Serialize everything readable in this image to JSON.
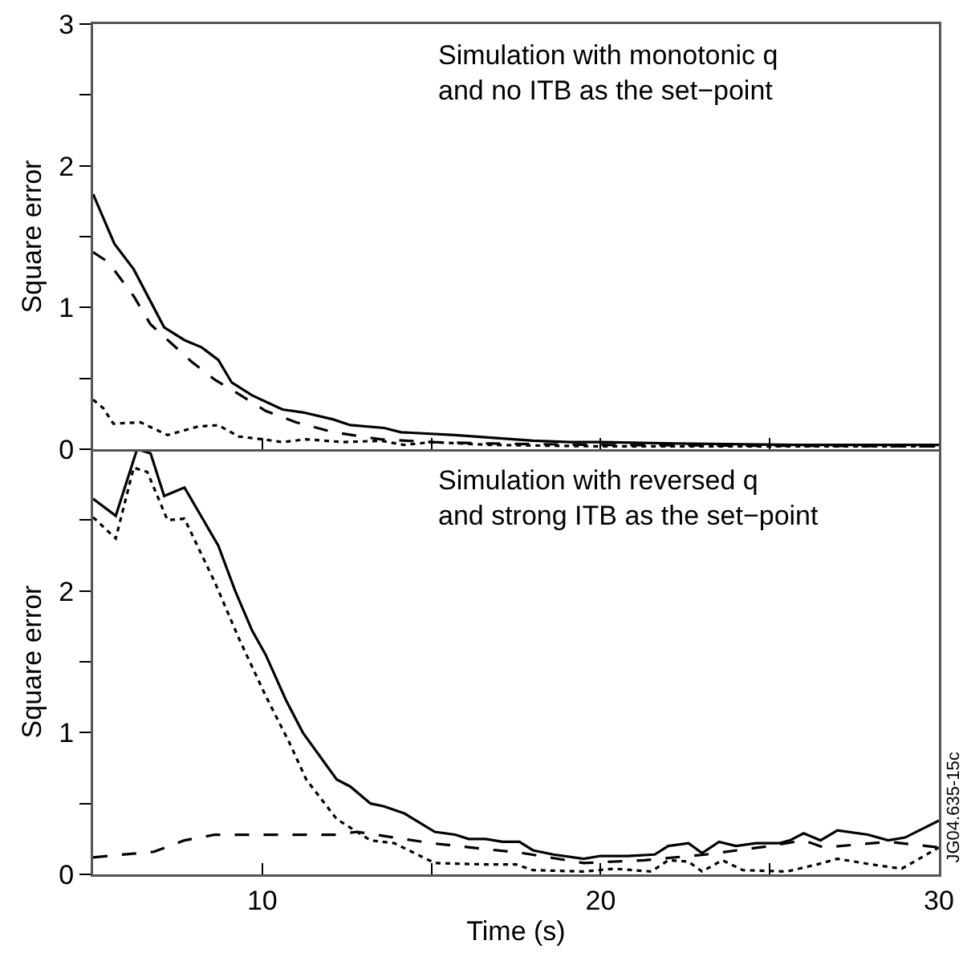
{
  "chart_data": [
    {
      "type": "line",
      "ylabel": "Square error",
      "annotations": [
        "Simulation with monotonic q\nand no ITB as the set−point"
      ],
      "xlim": [
        5,
        30
      ],
      "xticks": [
        {
          "value": 10,
          "label": null
        },
        {
          "value": 15,
          "label": null
        },
        {
          "value": 20,
          "label": null
        },
        {
          "value": 25,
          "label": null
        }
      ],
      "ylim": [
        0,
        3
      ],
      "yticks": [
        0,
        {
          "value": 0.5,
          "label": null
        },
        1,
        {
          "value": 1.5,
          "label": null
        },
        2,
        {
          "value": 2.5,
          "label": null
        },
        3
      ],
      "tick_labels": "y",
      "marker": "none",
      "series": [
        {
          "color": "#000000",
          "line_style": "solid",
          "x": [
            5,
            5.63,
            6.2,
            7.1,
            7.7,
            8.2,
            8.7,
            9.1,
            9.7,
            10.6,
            11.2,
            12.1,
            12.6,
            13.6,
            14.1,
            15.7,
            18,
            19.1,
            20,
            22.2,
            25.8,
            30
          ],
          "values": [
            1.8,
            1.45,
            1.27,
            0.86,
            0.77,
            0.72,
            0.63,
            0.47,
            0.38,
            0.28,
            0.26,
            0.21,
            0.17,
            0.15,
            0.12,
            0.1,
            0.06,
            0.05,
            0.05,
            0.04,
            0.03,
            0.03
          ]
        },
        {
          "color": "#000000",
          "line_style": "dashed",
          "x": [
            5,
            5.45,
            6.2,
            6.7,
            7.3,
            7.9,
            8.6,
            9.3,
            10.1,
            11,
            12.1,
            13.5,
            15,
            16.8,
            20,
            30
          ],
          "values": [
            1.39,
            1.32,
            1.08,
            0.88,
            0.75,
            0.62,
            0.49,
            0.39,
            0.27,
            0.19,
            0.12,
            0.07,
            0.05,
            0.04,
            0.03,
            0.02
          ]
        },
        {
          "color": "#000000",
          "line_style": "dotted",
          "x": [
            5,
            5.3,
            5.6,
            6.4,
            7.2,
            8.1,
            8.7,
            9.3,
            10,
            10.6,
            11.3,
            12.4,
            13.5,
            14.2,
            15,
            16.8,
            20,
            30
          ],
          "values": [
            0.35,
            0.29,
            0.18,
            0.19,
            0.1,
            0.16,
            0.17,
            0.09,
            0.07,
            0.05,
            0.07,
            0.05,
            0.06,
            0.03,
            0.05,
            0.03,
            0.02,
            0.02
          ]
        }
      ]
    },
    {
      "type": "line",
      "ylabel": "Square error",
      "xlabel": "Time (s)",
      "annotations": [
        "Simulation with reversed q\nand strong ITB as the set−point",
        "JG04.635-15c"
      ],
      "xlim": [
        5,
        30
      ],
      "xticks": [
        10,
        {
          "value": 15,
          "label": null
        },
        20,
        {
          "value": 25,
          "label": null
        },
        30
      ],
      "ylim": [
        0,
        3
      ],
      "yticks": [
        0,
        {
          "value": 0.5,
          "label": null
        },
        1,
        {
          "value": 1.5,
          "label": null
        },
        2,
        {
          "value": 2.5,
          "label": null
        },
        {
          "value": 3,
          "label": null
        }
      ],
      "marker": "none",
      "series": [
        {
          "color": "#000000",
          "line_style": "solid",
          "x": [
            5,
            5.67,
            6.3,
            6.7,
            7.1,
            7.7,
            8.7,
            9.2,
            9.7,
            10.1,
            10.7,
            11.2,
            12.2,
            12.6,
            13.2,
            13.6,
            14.2,
            15.1,
            15.7,
            16.1,
            16.6,
            17.1,
            17.6,
            18,
            18.6,
            19.5,
            20,
            20.8,
            21.6,
            22,
            22.6,
            23,
            23.5,
            24,
            24.6,
            25.3,
            25.6,
            26,
            26.5,
            27,
            27.9,
            28.5,
            29,
            30
          ],
          "values": [
            2.65,
            2.53,
            3,
            2.97,
            2.67,
            2.73,
            2.32,
            2,
            1.72,
            1.55,
            1.23,
            1,
            0.67,
            0.62,
            0.5,
            0.48,
            0.43,
            0.3,
            0.28,
            0.25,
            0.25,
            0.23,
            0.23,
            0.17,
            0.14,
            0.11,
            0.13,
            0.13,
            0.14,
            0.2,
            0.22,
            0.15,
            0.23,
            0.2,
            0.22,
            0.22,
            0.24,
            0.29,
            0.24,
            0.31,
            0.28,
            0.24,
            0.26,
            0.38
          ]
        },
        {
          "color": "#000000",
          "line_style": "dashed",
          "x": [
            5,
            6.8,
            7.7,
            8.6,
            10.1,
            12.2,
            12.8,
            15,
            17.7,
            19.5,
            21.3,
            23.1,
            25,
            26,
            26.6,
            28.5,
            30
          ],
          "values": [
            0.12,
            0.16,
            0.24,
            0.28,
            0.28,
            0.28,
            0.3,
            0.22,
            0.15,
            0.08,
            0.1,
            0.14,
            0.2,
            0.24,
            0.19,
            0.23,
            0.19
          ]
        },
        {
          "color": "#000000",
          "line_style": "dotted",
          "x": [
            5,
            5.67,
            6.2,
            6.6,
            7.2,
            7.7,
            8.6,
            9.3,
            10.1,
            10.8,
            11.3,
            12.2,
            12.6,
            13.2,
            13.9,
            15.1,
            16.6,
            17.5,
            18,
            19.5,
            20.4,
            21.5,
            22,
            22.6,
            23,
            23.6,
            24.2,
            25.5,
            26.4,
            27,
            28,
            28.9,
            30
          ],
          "values": [
            2.52,
            2.37,
            2.87,
            2.84,
            2.5,
            2.51,
            2.06,
            1.67,
            1.26,
            0.93,
            0.67,
            0.39,
            0.33,
            0.24,
            0.22,
            0.08,
            0.07,
            0.07,
            0.03,
            0.02,
            0.04,
            0.02,
            0.1,
            0.09,
            0.02,
            0.1,
            0.03,
            0.02,
            0.07,
            0.11,
            0.07,
            0.04,
            0.19
          ]
        }
      ]
    }
  ]
}
